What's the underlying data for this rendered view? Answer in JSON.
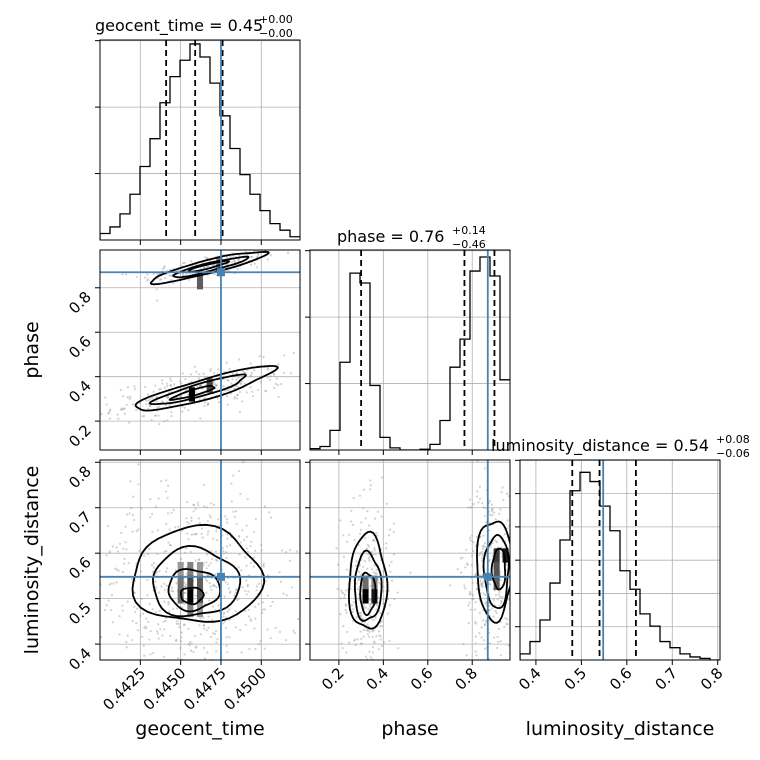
{
  "chart_data": {
    "type": "corner",
    "parameters": [
      "geocent_time",
      "phase",
      "luminosity_distance"
    ],
    "truths": [
      0.4475,
      0.87,
      0.548
    ],
    "truth_color": "#4682b4",
    "hist_color": "#000000",
    "grid": true,
    "axis_labels": {
      "geocent_time": "geocent_time",
      "phase": "phase",
      "luminosity_distance": "luminosity_distance"
    },
    "titles": [
      {
        "param": "geocent_time",
        "prefix": "geocent_time = 0.45",
        "sup": "+0.00",
        "sub": "−0.00"
      },
      {
        "param": "phase",
        "prefix": "phase = 0.76",
        "sup": "+0.14",
        "sub": "−0.46"
      },
      {
        "param": "luminosity_distance",
        "prefix": "luminosity_distance = 0.54",
        "sup": "+0.08",
        "sub": "−0.06"
      }
    ],
    "ranges": {
      "geocent_time": [
        0.44,
        0.4524
      ],
      "phase": [
        0.07,
        0.97
      ],
      "luminosity_distance": [
        0.365,
        0.805
      ]
    },
    "ticks": {
      "geocent_time": [
        "0.4425",
        "0.4450",
        "0.4475",
        "0.4500"
      ],
      "geocent_time_values": [
        0.4425,
        0.445,
        0.4475,
        0.45
      ],
      "phase": [
        "0.2",
        "0.4",
        "0.6",
        "0.8"
      ],
      "phase_values": [
        0.2,
        0.4,
        0.6,
        0.8
      ],
      "luminosity_distance": [
        "0.4",
        "0.5",
        "0.6",
        "0.7",
        "0.8"
      ],
      "luminosity_distance_values": [
        0.4,
        0.5,
        0.6,
        0.7,
        0.8
      ]
    },
    "histograms": {
      "geocent_time": {
        "edges": [
          0.44,
          0.44062,
          0.44124,
          0.44186,
          0.44248,
          0.4431,
          0.44372,
          0.44434,
          0.44496,
          0.44558,
          0.4462,
          0.44682,
          0.44744,
          0.44806,
          0.44868,
          0.4493,
          0.44992,
          0.45054,
          0.45116,
          0.45178,
          0.4524
        ],
        "counts": [
          4,
          8,
          16,
          28,
          45,
          62,
          84,
          100,
          110,
          120,
          112,
          96,
          76,
          56,
          40,
          28,
          18,
          10,
          6,
          2
        ]
      },
      "phase": {
        "edges": [
          0.07,
          0.115,
          0.16,
          0.205,
          0.25,
          0.295,
          0.34,
          0.385,
          0.43,
          0.475,
          0.52,
          0.565,
          0.61,
          0.655,
          0.7,
          0.745,
          0.79,
          0.835,
          0.88,
          0.925,
          0.97
        ],
        "counts": [
          2,
          5,
          28,
          125,
          252,
          238,
          92,
          18,
          3,
          0,
          0,
          1,
          8,
          42,
          118,
          158,
          255,
          275,
          248,
          100
        ],
        "ylim": [
          0,
          285
        ]
      },
      "luminosity_distance": {
        "edges": [
          0.365,
          0.387,
          0.409,
          0.431,
          0.453,
          0.475,
          0.497,
          0.519,
          0.541,
          0.563,
          0.585,
          0.607,
          0.629,
          0.651,
          0.673,
          0.695,
          0.717,
          0.739,
          0.761,
          0.783,
          0.805
        ],
        "counts": [
          4,
          12,
          26,
          50,
          78,
          110,
          122,
          116,
          100,
          84,
          58,
          46,
          30,
          22,
          12,
          8,
          4,
          2,
          1,
          0
        ],
        "ylim": [
          0,
          130
        ]
      }
    },
    "quantile_lines": {
      "geocent_time": [
        0.4441,
        0.4459,
        0.4476
      ],
      "phase": [
        0.3,
        0.765,
        0.9
      ],
      "luminosity_distance": [
        0.48,
        0.54,
        0.62
      ]
    },
    "scatter_clusters": {
      "phase_vs_geocent_time": [
        {
          "cx": 0.4468,
          "cy": 0.895,
          "sx": 0.0014,
          "sy": 0.018,
          "n": 220,
          "slope": 12
        },
        {
          "cx": 0.4462,
          "cy": 0.335,
          "sx": 0.0018,
          "sy": 0.03,
          "n": 320,
          "slope": 14
        }
      ],
      "luminosity_distance_vs_geocent_time": [
        {
          "cx": 0.4458,
          "cy": 0.525,
          "sx": 0.0022,
          "sy": 0.075,
          "n": 600,
          "slope": 0
        }
      ],
      "luminosity_distance_vs_phase": [
        {
          "cx": 0.33,
          "cy": 0.515,
          "sx": 0.04,
          "sy": 0.065,
          "n": 320,
          "slope": 0
        },
        {
          "cx": 0.88,
          "cy": 0.555,
          "sx": 0.04,
          "sy": 0.07,
          "n": 320,
          "slope": 0
        }
      ]
    },
    "contours": {
      "phase_vs_geocent_time": [
        {
          "center": [
            0.4467,
            0.893
          ],
          "rx": 0.0037,
          "ry": 0.03,
          "rot_deg": -14
        },
        {
          "center": [
            0.4468,
            0.893
          ],
          "rx": 0.0024,
          "ry": 0.018,
          "rot_deg": -14
        },
        {
          "center": [
            0.4467,
            0.896
          ],
          "rx": 0.0013,
          "ry": 0.009,
          "rot_deg": -14
        },
        {
          "center": [
            0.4465,
            0.345
          ],
          "rx": 0.0045,
          "ry": 0.045,
          "rot_deg": -16
        },
        {
          "center": [
            0.4462,
            0.34
          ],
          "rx": 0.003,
          "ry": 0.028,
          "rot_deg": -16
        },
        {
          "center": [
            0.4458,
            0.328
          ],
          "rx": 0.0014,
          "ry": 0.013,
          "rot_deg": -16
        }
      ],
      "luminosity_distance_vs_geocent_time": [
        {
          "center": [
            0.446,
            0.55
          ],
          "rx": 0.004,
          "ry": 0.105,
          "rot_deg": 0
        },
        {
          "center": [
            0.4459,
            0.535
          ],
          "rx": 0.0027,
          "ry": 0.075,
          "rot_deg": 0
        },
        {
          "center": [
            0.4458,
            0.52
          ],
          "rx": 0.0016,
          "ry": 0.045,
          "rot_deg": 0
        },
        {
          "center": [
            0.4457,
            0.507
          ],
          "rx": 0.0007,
          "ry": 0.018,
          "rot_deg": 0
        }
      ],
      "luminosity_distance_vs_phase": [
        {
          "center": [
            0.33,
            0.535
          ],
          "rx": 0.085,
          "ry": 0.105,
          "rot_deg": 0
        },
        {
          "center": [
            0.33,
            0.525
          ],
          "rx": 0.06,
          "ry": 0.075,
          "rot_deg": 0
        },
        {
          "center": [
            0.33,
            0.512
          ],
          "rx": 0.035,
          "ry": 0.045,
          "rot_deg": 0
        },
        {
          "center": [
            0.9,
            0.565
          ],
          "rx": 0.08,
          "ry": 0.11,
          "rot_deg": 0
        },
        {
          "center": [
            0.91,
            0.56
          ],
          "rx": 0.055,
          "ry": 0.08,
          "rot_deg": 0
        },
        {
          "center": [
            0.92,
            0.565
          ],
          "rx": 0.03,
          "ry": 0.045,
          "rot_deg": 0
        }
      ]
    },
    "density_blocks": {
      "luminosity_distance_vs_geocent_time": [
        {
          "x": 0.445,
          "y": 0.565,
          "v": 0.35
        },
        {
          "x": 0.4456,
          "y": 0.565,
          "v": 0.45
        },
        {
          "x": 0.4462,
          "y": 0.565,
          "v": 0.35
        },
        {
          "x": 0.445,
          "y": 0.535,
          "v": 0.5
        },
        {
          "x": 0.4456,
          "y": 0.535,
          "v": 0.7
        },
        {
          "x": 0.4462,
          "y": 0.535,
          "v": 0.6
        },
        {
          "x": 0.445,
          "y": 0.505,
          "v": 0.55
        },
        {
          "x": 0.4456,
          "y": 0.505,
          "v": 1.0
        },
        {
          "x": 0.4462,
          "y": 0.505,
          "v": 0.65
        },
        {
          "x": 0.4456,
          "y": 0.475,
          "v": 0.45
        },
        {
          "x": 0.4462,
          "y": 0.475,
          "v": 0.35
        }
      ],
      "luminosity_distance_vs_phase": [
        {
          "x": 0.32,
          "y": 0.535,
          "v": 0.55
        },
        {
          "x": 0.36,
          "y": 0.535,
          "v": 0.45
        },
        {
          "x": 0.32,
          "y": 0.505,
          "v": 1.0
        },
        {
          "x": 0.36,
          "y": 0.505,
          "v": 0.9
        },
        {
          "x": 0.91,
          "y": 0.595,
          "v": 0.75
        },
        {
          "x": 0.95,
          "y": 0.595,
          "v": 0.9
        },
        {
          "x": 0.91,
          "y": 0.565,
          "v": 0.65
        },
        {
          "x": 0.91,
          "y": 0.535,
          "v": 0.6
        }
      ],
      "phase_vs_geocent_time": [
        {
          "x": 0.4462,
          "y": 0.825,
          "v": 0.6
        },
        {
          "x": 0.4474,
          "y": 0.905,
          "v": 0.55
        },
        {
          "x": 0.4457,
          "y": 0.32,
          "v": 1.0
        },
        {
          "x": 0.4468,
          "y": 0.36,
          "v": 0.7
        }
      ]
    }
  }
}
